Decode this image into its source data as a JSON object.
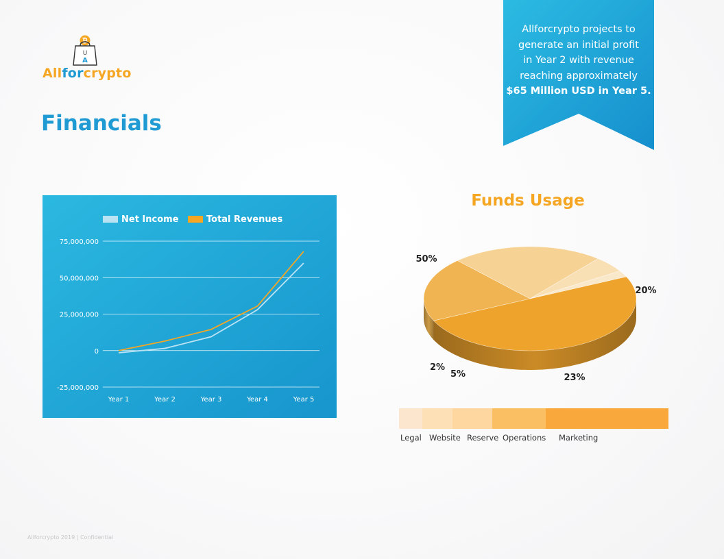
{
  "logo": {
    "badge_letters": "U\nA",
    "part1": "All",
    "part2": "for",
    "part3": "crypto"
  },
  "page_title": "Financials",
  "callout": {
    "lines": [
      "Allforcrypto projects to",
      "generate an initial profit",
      "in Year 2 with revenue",
      "reaching approximately"
    ],
    "emphasis": "$65 Million USD in Year 5."
  },
  "chart_data": [
    {
      "type": "line",
      "title": "",
      "xlabel": "",
      "ylabel": "",
      "x": [
        "Year 1",
        "Year 2",
        "Year 3",
        "Year 4",
        "Year 5"
      ],
      "ylim": [
        -25000000,
        75000000
      ],
      "yticks": [
        75000000,
        50000000,
        25000000,
        0,
        -25000000
      ],
      "ytick_labels": [
        "75,000,000",
        "50,000,000",
        "25,000,000",
        "0",
        "-25,000,000"
      ],
      "legend_position": "top",
      "grid": true,
      "series": [
        {
          "name": "Net Income",
          "color": "#b9e2f3",
          "values": [
            -1500000,
            1500000,
            9500000,
            28000000,
            60000000
          ]
        },
        {
          "name": "Total Revenues",
          "color": "#f5a623",
          "values": [
            0,
            6500000,
            14500000,
            30500000,
            68000000
          ]
        }
      ]
    },
    {
      "type": "pie",
      "title": "Funds Usage",
      "slices": [
        {
          "label": "Marketing",
          "value": 50,
          "display": "50%",
          "color": "#eea32d"
        },
        {
          "label": "Operations",
          "value": 20,
          "display": "20%",
          "color": "#f0b552"
        },
        {
          "label": "Reserve",
          "value": 23,
          "display": "23%",
          "color": "#f6d294"
        },
        {
          "label": "Website",
          "value": 5,
          "display": "5%",
          "color": "#f8dfb4"
        },
        {
          "label": "Legal",
          "value": 2,
          "display": "2%",
          "color": "#fae8cb"
        }
      ]
    }
  ],
  "funds_legend": [
    {
      "label": "Legal",
      "color": "#fce6cd"
    },
    {
      "label": "Website",
      "color": "#fde0b6"
    },
    {
      "label": "Reserve",
      "color": "#fdd79f"
    },
    {
      "label": "Operations",
      "color": "#f9bf62"
    },
    {
      "label": "Marketing",
      "color": "#f9a83c"
    }
  ],
  "footer": "Allforcrypto 2019 | Confidential"
}
